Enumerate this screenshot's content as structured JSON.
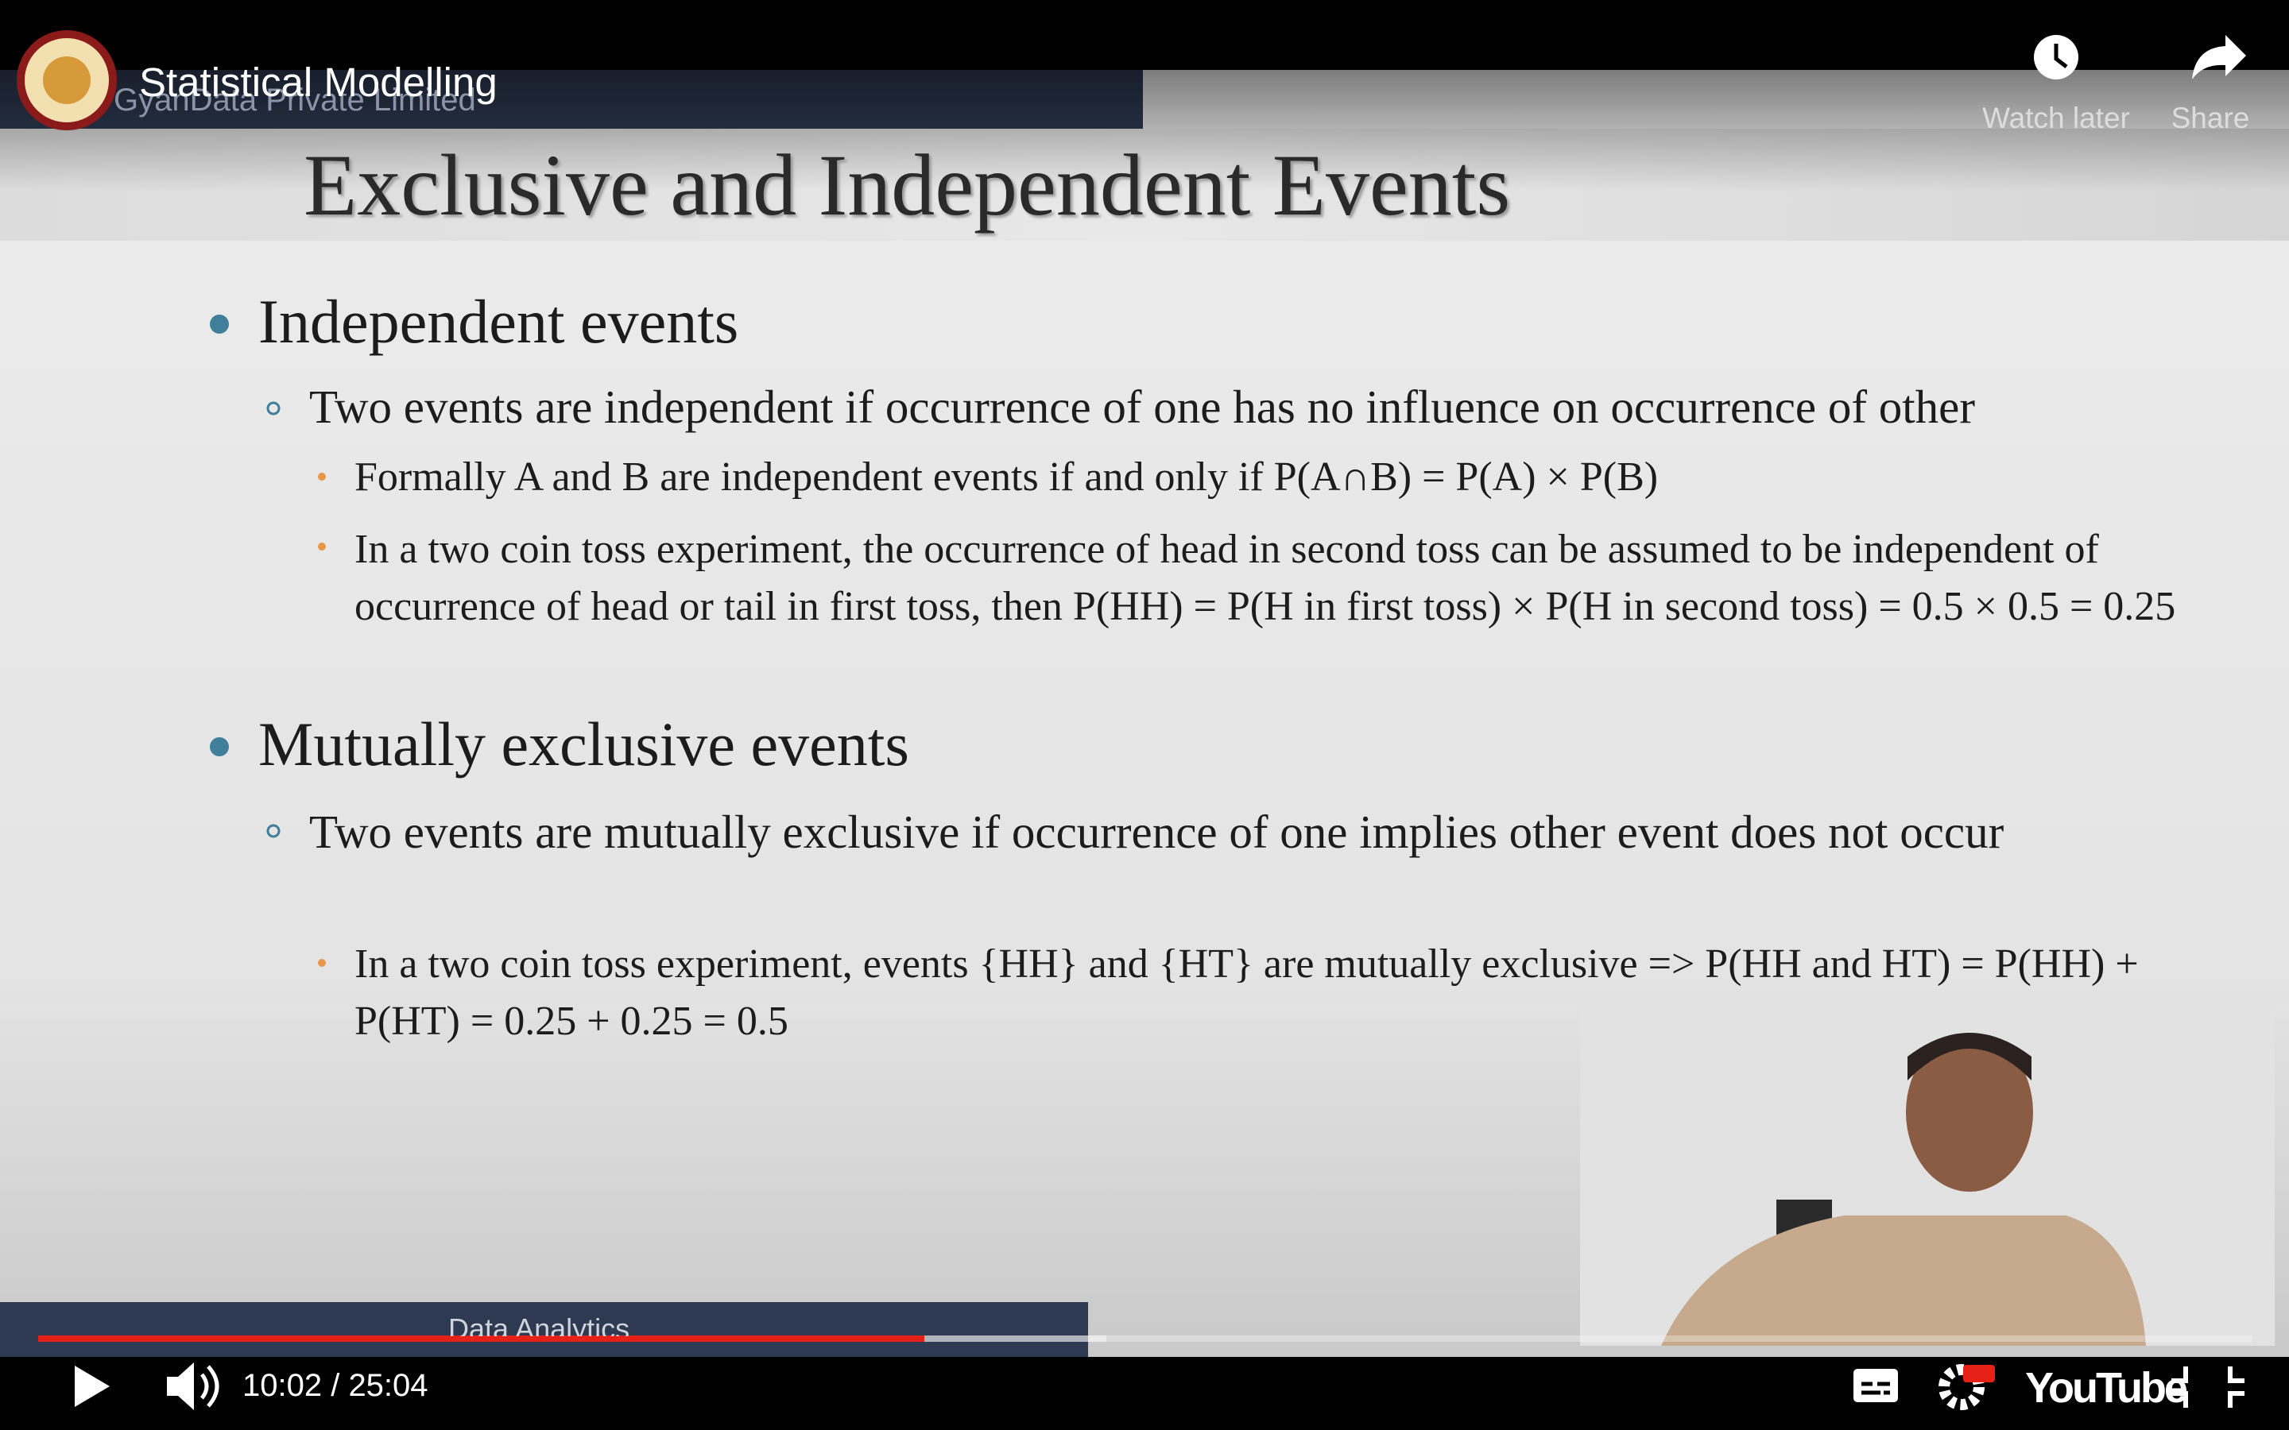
{
  "player": {
    "title": "Statistical Modelling",
    "watch_later": "Watch later",
    "share": "Share",
    "time": "10:02 / 25:04",
    "brand": "YouTube"
  },
  "slide": {
    "watermark": "GyanData Private Limited",
    "title": "Exclusive and Independent Events",
    "footer": "Data Analytics",
    "sections": [
      {
        "heading": "Independent events",
        "points": [
          {
            "text": "Two events are independent if occurrence of one has no influence on occurrence of other",
            "details": [
              "Formally A and B are independent events if and only if P(A∩B) = P(A) × P(B)",
              "In a two coin toss experiment, the occurrence of head in second toss can be assumed to be independent of occurrence of head or tail in first toss, then P(HH) = P(H in first toss) × P(H in second toss) = 0.5 × 0.5 = 0.25"
            ]
          }
        ]
      },
      {
        "heading": "Mutually exclusive events",
        "points": [
          {
            "text": "Two events are mutually exclusive if occurrence of one implies other event does not occur",
            "details": [
              "In a two coin toss experiment, events {HH} and {HT} are mutually exclusive => P(HH and HT) = P(HH) + P(HT) = 0.25 + 0.25 = 0.5"
            ]
          }
        ]
      }
    ]
  }
}
